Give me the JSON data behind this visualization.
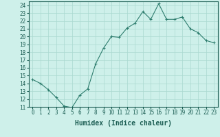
{
  "x": [
    0,
    1,
    2,
    3,
    4,
    5,
    6,
    7,
    8,
    9,
    10,
    11,
    12,
    13,
    14,
    15,
    16,
    17,
    18,
    19,
    20,
    21,
    22,
    23
  ],
  "y": [
    14.5,
    14.0,
    13.2,
    12.2,
    11.1,
    10.9,
    12.5,
    13.3,
    16.5,
    18.5,
    20.0,
    19.9,
    21.1,
    21.7,
    23.2,
    22.2,
    24.2,
    22.2,
    22.2,
    22.5,
    21.0,
    20.5,
    19.5,
    19.2
  ],
  "line_color": "#2e7d6e",
  "marker": "+",
  "marker_color": "#2e7d6e",
  "bg_color": "#cef0ea",
  "grid_color": "#aad8d0",
  "xlabel": "Humidex (Indice chaleur)",
  "ylim": [
    11,
    24.5
  ],
  "xlim": [
    -0.5,
    23.5
  ],
  "yticks": [
    11,
    12,
    13,
    14,
    15,
    16,
    17,
    18,
    19,
    20,
    21,
    22,
    23,
    24
  ],
  "xticks": [
    0,
    1,
    2,
    3,
    4,
    5,
    6,
    7,
    8,
    9,
    10,
    11,
    12,
    13,
    14,
    15,
    16,
    17,
    18,
    19,
    20,
    21,
    22,
    23
  ],
  "tick_color": "#1a5c52",
  "label_fontsize": 5.5,
  "axis_label_fontsize": 7
}
